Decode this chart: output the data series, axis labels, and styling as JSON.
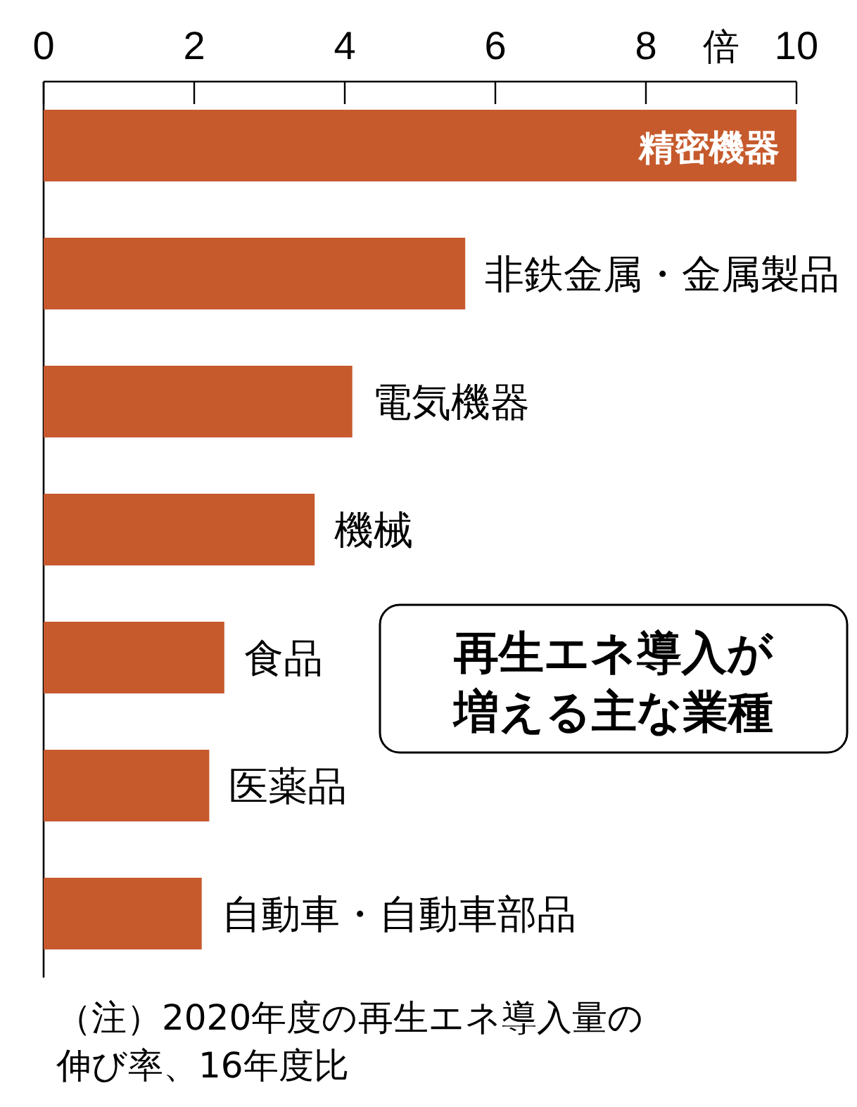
{
  "chart_data": {
    "type": "bar",
    "orientation": "horizontal",
    "title": "再生エネ導入が増える主な業種",
    "xlabel": "倍",
    "categories": [
      "精密機器",
      "非鉄金属・金属製品",
      "電気機器",
      "機械",
      "食品",
      "医薬品",
      "自動車・自動車部品"
    ],
    "values": [
      10,
      5.6,
      4.1,
      3.6,
      2.4,
      2.2,
      2.1
    ],
    "color": "#c65a2c",
    "xlim": [
      0,
      10
    ],
    "xticks": [
      0,
      2,
      4,
      6,
      8,
      10
    ],
    "grid": false,
    "annotations": [
      "（注）2020年度の再生エネ導入量の伸び率、16年度比"
    ]
  }
}
